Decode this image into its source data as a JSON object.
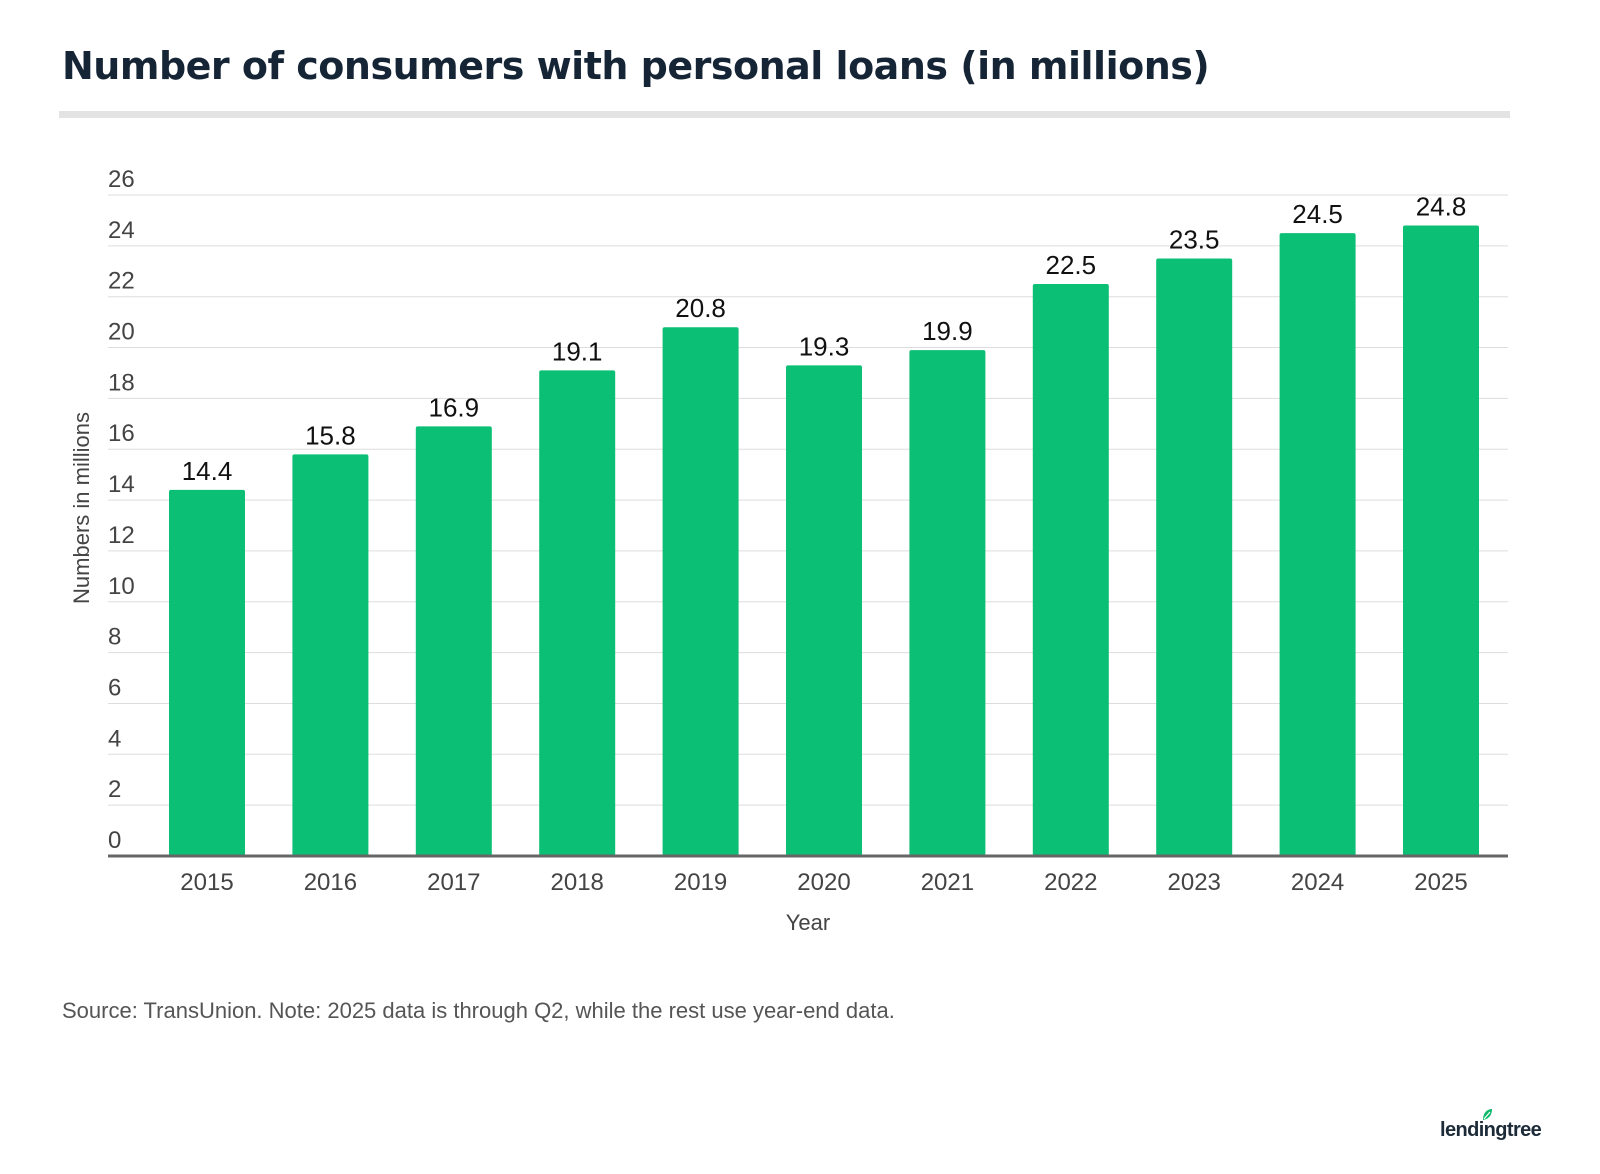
{
  "title": "Number of consumers with personal loans (in millions)",
  "source_note": "Source: TransUnion. Note: 2025 data is through Q2, while the rest use year-end data.",
  "logo": {
    "text": "lendingtree",
    "icon": "leaf-icon",
    "color": "#0db86a"
  },
  "colors": {
    "bar": "#0bbf74",
    "grid": "#dddddd",
    "axis": "#666666",
    "title": "#152536"
  },
  "chart_data": {
    "type": "bar",
    "title": "Number of consumers with personal loans (in millions)",
    "xlabel": "Year",
    "ylabel": "Numbers in millions",
    "categories": [
      "2015",
      "2016",
      "2017",
      "2018",
      "2019",
      "2020",
      "2021",
      "2022",
      "2023",
      "2024",
      "2025"
    ],
    "values": [
      14.4,
      15.8,
      16.9,
      19.1,
      20.8,
      19.3,
      19.9,
      22.5,
      23.5,
      24.5,
      24.8
    ],
    "value_labels": [
      "14.4",
      "15.8",
      "16.9",
      "19.1",
      "20.8",
      "19.3",
      "19.9",
      "22.5",
      "23.5",
      "24.5",
      "24.8"
    ],
    "yticks": [
      "0",
      "2",
      "4",
      "6",
      "8",
      "10",
      "12",
      "14",
      "16",
      "18",
      "20",
      "22",
      "24",
      "26"
    ],
    "ylim": [
      0,
      26
    ],
    "grid": true,
    "legend": "none"
  }
}
